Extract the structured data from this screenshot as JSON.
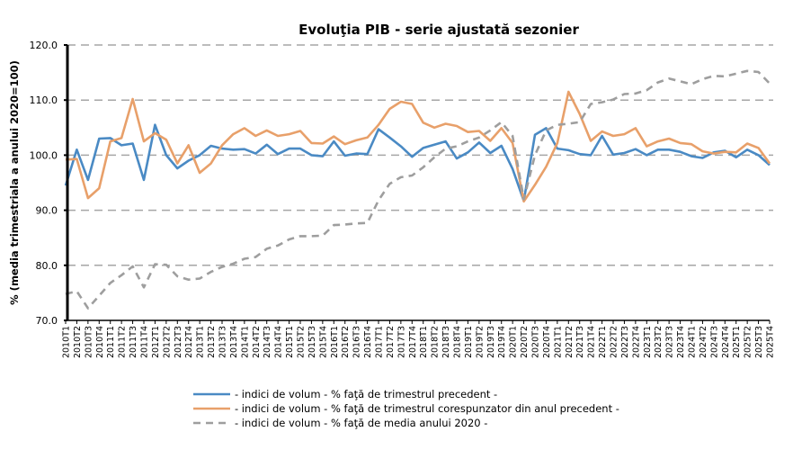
{
  "chart_data": {
    "type": "line",
    "title": "Evoluţia PIB - serie ajustată sezonier",
    "xlabel": "",
    "ylabel": "% (media trimestriala a anului 2020=100)",
    "ylim": [
      70,
      120
    ],
    "yticks": [
      "70.0",
      "80.0",
      "90.0",
      "100.0",
      "110.0",
      "120.0"
    ],
    "ytick_values": [
      70,
      80,
      90,
      100,
      110,
      120
    ],
    "grid": true,
    "legend_position": "bottom",
    "categories": [
      "2010T1",
      "2010T2",
      "2010T3",
      "2010T4",
      "2011T1",
      "2011T2",
      "2011T3",
      "2011T4",
      "2012T1",
      "2012T2",
      "2012T3",
      "2012T4",
      "2013T1",
      "2013T2",
      "2013T3",
      "2013T4",
      "2014T1",
      "2014T2",
      "2014T3",
      "2014T4",
      "2015T1",
      "2015T2",
      "2015T3",
      "2015T4",
      "2016T1",
      "2016T2",
      "2016T3",
      "2016T4",
      "2017T1",
      "2017T2",
      "2017T3",
      "2017T4",
      "2018T1",
      "2018T2",
      "2018T3",
      "2018T4",
      "2019T1",
      "2019T2",
      "2019T3",
      "2019T4",
      "2020T1",
      "2020T2",
      "2020T3",
      "2020T4",
      "2021T1",
      "2021T2",
      "2021T3",
      "2021T4",
      "2022T1",
      "2022T2",
      "2022T3",
      "2022T4",
      "2023T1",
      "2023T2",
      "2023T3",
      "2023T4",
      "2024T1",
      "2024T2",
      "2024T3",
      "2024T4",
      "2025T1",
      "2025T2",
      "2025T3",
      "2025T4"
    ],
    "series": [
      {
        "name": "- indici de volum - % faţă de trimestrul precedent -",
        "color": "#4a8ac4",
        "dash": false,
        "values": [
          94.5,
          101.0,
          95.5,
          103.0,
          103.1,
          101.8,
          102.1,
          95.5,
          105.5,
          100.0,
          97.6,
          99.0,
          100.0,
          101.7,
          101.2,
          101.0,
          101.1,
          100.3,
          101.9,
          100.2,
          101.2,
          101.2,
          100.0,
          99.8,
          102.5,
          99.9,
          100.3,
          100.2,
          104.7,
          103.2,
          101.6,
          99.7,
          101.3,
          101.9,
          102.5,
          99.4,
          100.5,
          102.3,
          100.4,
          101.7,
          97.5,
          91.7,
          103.7,
          104.9,
          101.2,
          100.9,
          100.2,
          100.0,
          103.5,
          100.1,
          100.4,
          101.1,
          100.0,
          101.0,
          101.0,
          100.6,
          99.8,
          99.5,
          100.5,
          100.8,
          99.6,
          101.0,
          100.0,
          98.2
        ]
      },
      {
        "name": "- indici de volum - % faţă de trimestrul corespunzator din anul precedent -",
        "color": "#e8a06a",
        "dash": false,
        "values": [
          99.2,
          99.3,
          92.2,
          94.0,
          102.5,
          103.1,
          110.2,
          102.5,
          104.0,
          102.8,
          98.5,
          101.8,
          96.8,
          98.5,
          101.8,
          103.8,
          104.9,
          103.5,
          104.5,
          103.5,
          103.8,
          104.4,
          102.2,
          102.1,
          103.4,
          102.0,
          102.7,
          103.2,
          105.5,
          108.4,
          109.7,
          109.3,
          105.9,
          105.0,
          105.7,
          105.3,
          104.2,
          104.4,
          102.6,
          104.9,
          102.2,
          91.6,
          94.6,
          97.9,
          102.2,
          111.5,
          107.5,
          102.6,
          104.3,
          103.5,
          103.8,
          104.9,
          101.6,
          102.5,
          103.0,
          102.2,
          102.0,
          100.7,
          100.3,
          100.6,
          100.5,
          102.1,
          101.3,
          98.5
        ]
      },
      {
        "name": "- indici de volum - % faţă de media anului 2020 -",
        "color": "#9e9e9e",
        "dash": true,
        "values": [
          74.8,
          75.3,
          72.2,
          74.5,
          76.8,
          78.2,
          79.8,
          76.0,
          80.2,
          80.1,
          78.0,
          77.4,
          77.6,
          78.8,
          79.7,
          80.3,
          81.2,
          81.5,
          83.0,
          83.6,
          84.7,
          85.3,
          85.3,
          85.4,
          87.3,
          87.4,
          87.6,
          87.7,
          91.8,
          94.8,
          96.0,
          96.3,
          97.8,
          99.6,
          101.2,
          101.6,
          102.5,
          103.2,
          104.5,
          106.0,
          103.5,
          92.0,
          100.0,
          104.5,
          105.5,
          105.7,
          106.0,
          109.3,
          109.6,
          110.1,
          111.1,
          111.2,
          111.8,
          113.2,
          113.9,
          113.4,
          112.9,
          113.8,
          114.4,
          114.3,
          114.8,
          115.3,
          115.1,
          113.0
        ]
      }
    ]
  }
}
